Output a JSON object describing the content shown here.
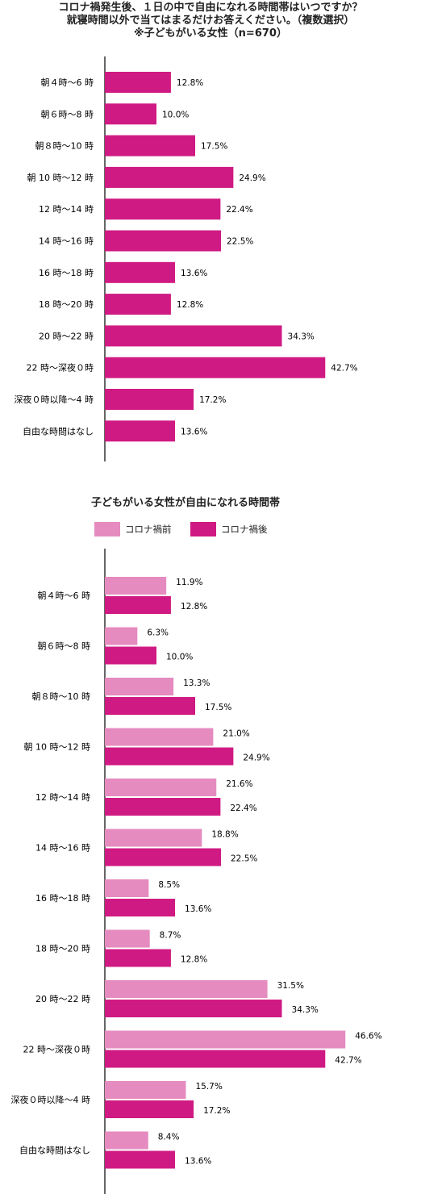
{
  "colors": {
    "before": "#e58bbf",
    "after": "#d01a83",
    "axis": "#000000"
  },
  "chart_data": [
    {
      "type": "bar",
      "orientation": "horizontal",
      "title_lines": [
        "コロナ禍発生後、１日の中で自由になれる時間帯はいつですか？",
        "就寝時間以外で当てはまるだけお答えください。（複数選択）",
        "※子どもがいる女性（n=670）"
      ],
      "categories": [
        "朝４時〜6 時",
        "朝６時〜8 時",
        "朝８時〜10 時",
        "朝 10 時〜12 時",
        "12 時〜14 時",
        "14 時〜16 時",
        "16 時〜18 時",
        "18 時〜20 時",
        "20 時〜22 時",
        "22 時〜深夜０時",
        "深夜０時以降〜4 時",
        "自由な時間はなし"
      ],
      "series": [
        {
          "values": [
            12.8,
            10.0,
            17.5,
            24.9,
            22.4,
            22.5,
            13.6,
            12.8,
            34.3,
            42.7,
            17.2,
            13.6
          ],
          "labels": [
            "12.8%",
            "10.0%",
            "17.5%",
            "24.9%",
            "22.4%",
            "22.5%",
            "13.6%",
            "12.8%",
            "34.3%",
            "42.7%",
            "17.2%",
            "13.6%"
          ]
        }
      ]
    },
    {
      "type": "bar",
      "orientation": "horizontal",
      "title": "子どもがいる女性が自由になれる時間帯",
      "categories": [
        "朝４時〜6 時",
        "朝６時〜8 時",
        "朝８時〜10 時",
        "朝 10 時〜12 時",
        "12 時〜14 時",
        "14 時〜16 時",
        "16 時〜18 時",
        "18 時〜20 時",
        "20 時〜22 時",
        "22 時〜深夜０時",
        "深夜０時以降〜4 時",
        "自由な時間はなし"
      ],
      "legend": "top",
      "series": [
        {
          "name": "コロナ禍前",
          "values": [
            11.9,
            6.3,
            13.3,
            21.0,
            21.6,
            18.8,
            8.5,
            8.7,
            31.5,
            46.6,
            15.7,
            8.4
          ],
          "labels": [
            "11.9%",
            "6.3%",
            "13.3%",
            "21.0%",
            "21.6%",
            "18.8%",
            "8.5%",
            "8.7%",
            "31.5%",
            "46.6%",
            "15.7%",
            "8.4%"
          ]
        },
        {
          "name": "コロナ禍後",
          "values": [
            12.8,
            10.0,
            17.5,
            24.9,
            22.4,
            22.5,
            13.6,
            12.8,
            34.3,
            42.7,
            17.2,
            13.6
          ],
          "labels": [
            "12.8%",
            "10.0%",
            "17.5%",
            "24.9%",
            "22.4%",
            "22.5%",
            "13.6%",
            "12.8%",
            "34.3%",
            "42.7%",
            "17.2%",
            "13.6%"
          ]
        }
      ]
    }
  ]
}
